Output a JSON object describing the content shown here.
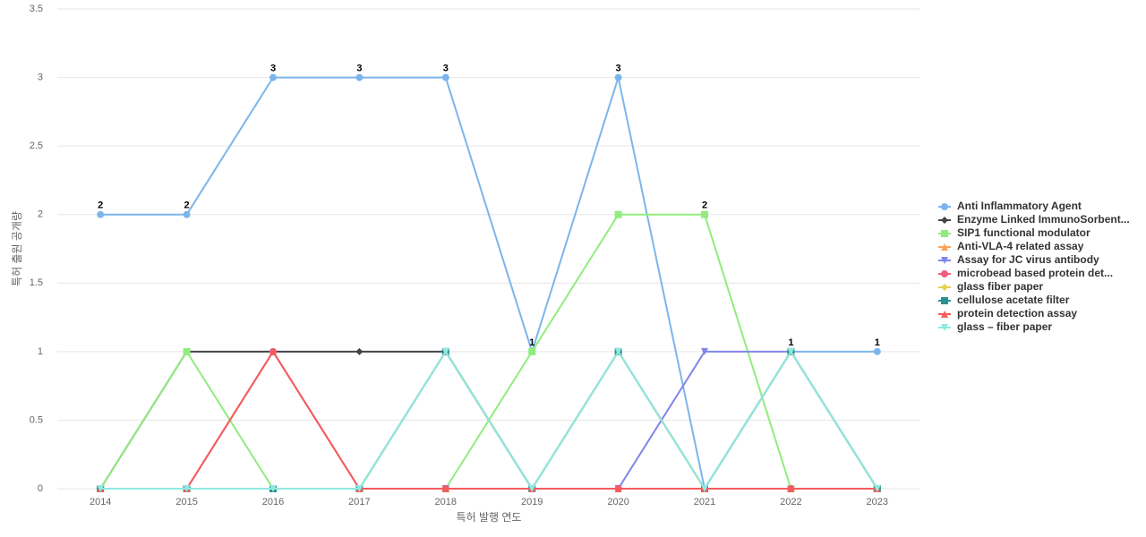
{
  "chart_data": {
    "type": "line",
    "x_label": "특허 발행 연도",
    "y_label": "특허 출원 공개량",
    "categories": [
      "2014",
      "2015",
      "2016",
      "2017",
      "2018",
      "2019",
      "2020",
      "2021",
      "2022",
      "2023"
    ],
    "ylim": [
      0,
      3.5
    ],
    "yticks": [
      0,
      0.5,
      1,
      1.5,
      2,
      2.5,
      3,
      3.5
    ],
    "grid": true,
    "legend": "right",
    "series": [
      {
        "name": "Anti Inflammatory Agent",
        "color": "#7cb5ec",
        "marker": "circle",
        "values": [
          2,
          2,
          3,
          3,
          3,
          1,
          3,
          0,
          1,
          1
        ]
      },
      {
        "name": "Enzyme Linked ImmunoSorbent...",
        "color": "#434348",
        "marker": "diamond",
        "values": [
          0,
          1,
          1,
          1,
          1,
          0,
          0,
          0,
          0,
          0
        ]
      },
      {
        "name": "SIP1 functional modulator",
        "color": "#90ed7d",
        "marker": "square",
        "values": [
          0,
          1,
          0,
          0,
          0,
          1,
          2,
          2,
          0,
          0
        ]
      },
      {
        "name": "Anti-VLA-4 related assay",
        "color": "#f7a35c",
        "marker": "triangle",
        "values": [
          0,
          0,
          0,
          0,
          1,
          0,
          1,
          0,
          1,
          0
        ]
      },
      {
        "name": "Assay for JC virus antibody",
        "color": "#8085e9",
        "marker": "triangle-down",
        "values": [
          0,
          0,
          0,
          0,
          0,
          0,
          0,
          1,
          1,
          0
        ]
      },
      {
        "name": "microbead based protein det...",
        "color": "#f15c80",
        "marker": "circle",
        "values": [
          0,
          0,
          1,
          0,
          0,
          0,
          0,
          0,
          0,
          0
        ]
      },
      {
        "name": "glass fiber paper",
        "color": "#e4d354",
        "marker": "diamond",
        "values": [
          0,
          0,
          0,
          0,
          1,
          0,
          1,
          0,
          1,
          0
        ]
      },
      {
        "name": "cellulose acetate filter",
        "color": "#2b908f",
        "marker": "square",
        "values": [
          0,
          0,
          0,
          0,
          1,
          0,
          1,
          0,
          1,
          0
        ]
      },
      {
        "name": "protein detection assay",
        "color": "#f45b5b",
        "marker": "triangle",
        "values": [
          0,
          0,
          1,
          0,
          0,
          0,
          0,
          0,
          0,
          0
        ]
      },
      {
        "name": "glass – fiber paper",
        "color": "#91e8e1",
        "marker": "triangle-down",
        "values": [
          0,
          0,
          0,
          0,
          1,
          0,
          1,
          0,
          1,
          0
        ]
      }
    ]
  }
}
